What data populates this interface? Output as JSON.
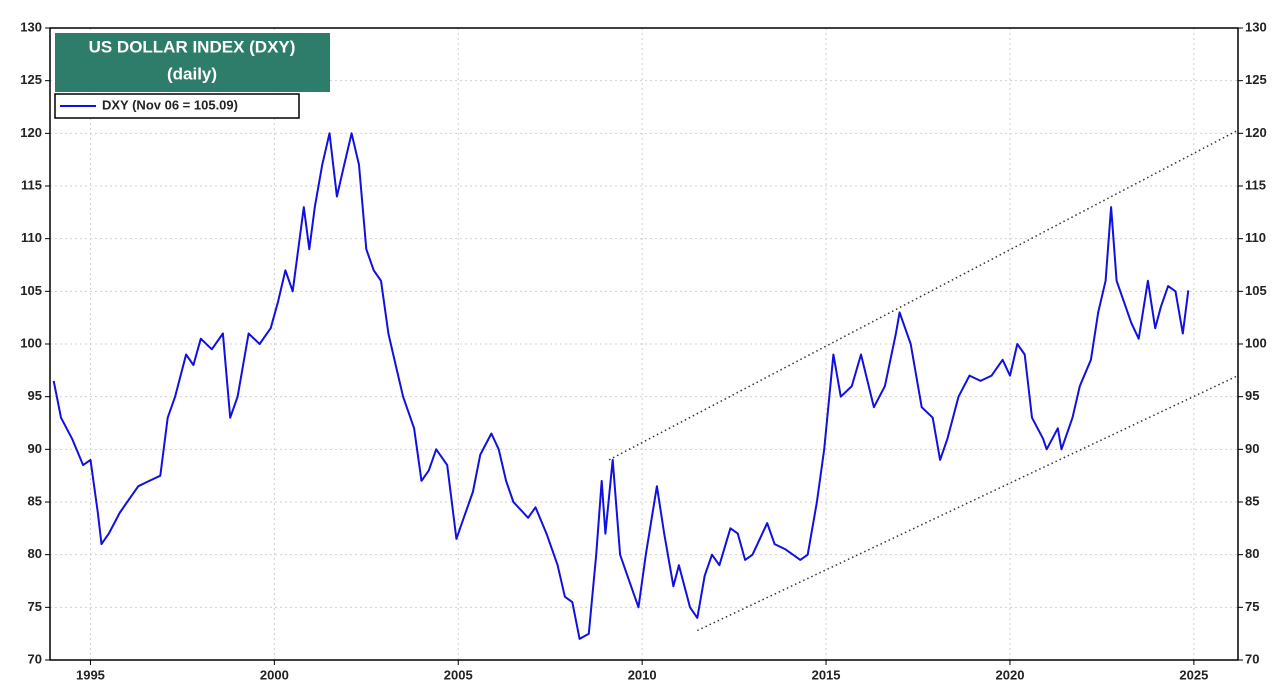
{
  "chart_data": {
    "type": "line",
    "title": "US DOLLAR INDEX (DXY)",
    "subtitle": "(daily)",
    "xlim": [
      1993.9,
      2026.2
    ],
    "xticks": [
      1995,
      2000,
      2005,
      2010,
      2015,
      2020,
      2025
    ],
    "ylim": [
      70,
      130
    ],
    "yticks": [
      70,
      75,
      80,
      85,
      90,
      95,
      100,
      105,
      110,
      115,
      120,
      125,
      130
    ],
    "grid": true,
    "legend": "upper left",
    "series": [
      {
        "name": "DXY (Nov 06 = 105.09)",
        "color": "#1010e0",
        "x": [
          1994.0,
          1994.2,
          1994.5,
          1994.8,
          1995.0,
          1995.2,
          1995.3,
          1995.5,
          1995.8,
          1996.0,
          1996.3,
          1996.6,
          1996.9,
          1997.1,
          1997.3,
          1997.6,
          1997.8,
          1998.0,
          1998.3,
          1998.6,
          1998.8,
          1999.0,
          1999.3,
          1999.6,
          1999.9,
          2000.1,
          2000.3,
          2000.5,
          2000.8,
          2000.95,
          2001.1,
          2001.3,
          2001.5,
          2001.7,
          2001.9,
          2002.1,
          2002.3,
          2002.5,
          2002.7,
          2002.9,
          2003.1,
          2003.3,
          2003.5,
          2003.8,
          2004.0,
          2004.2,
          2004.4,
          2004.7,
          2004.95,
          2005.1,
          2005.4,
          2005.6,
          2005.9,
          2006.1,
          2006.3,
          2006.5,
          2006.9,
          2007.1,
          2007.4,
          2007.7,
          2007.9,
          2008.1,
          2008.3,
          2008.55,
          2008.75,
          2008.9,
          2009.0,
          2009.2,
          2009.4,
          2009.7,
          2009.9,
          2010.1,
          2010.4,
          2010.6,
          2010.85,
          2011.0,
          2011.3,
          2011.5,
          2011.7,
          2011.9,
          2012.1,
          2012.4,
          2012.6,
          2012.8,
          2013.0,
          2013.4,
          2013.6,
          2013.9,
          2014.3,
          2014.5,
          2014.75,
          2014.95,
          2015.2,
          2015.4,
          2015.7,
          2015.95,
          2016.3,
          2016.6,
          2016.9,
          2017.0,
          2017.3,
          2017.6,
          2017.9,
          2018.1,
          2018.3,
          2018.6,
          2018.9,
          2019.2,
          2019.5,
          2019.8,
          2020.0,
          2020.2,
          2020.4,
          2020.6,
          2020.9,
          2021.0,
          2021.3,
          2021.4,
          2021.7,
          2021.9,
          2022.2,
          2022.4,
          2022.6,
          2022.75,
          2022.9,
          2023.1,
          2023.3,
          2023.5,
          2023.75,
          2023.95,
          2024.1,
          2024.3,
          2024.5,
          2024.7,
          2024.85
        ],
        "values": [
          96.5,
          93,
          91,
          88.5,
          89,
          84,
          81,
          82,
          84,
          85,
          86.5,
          87,
          87.5,
          93,
          95,
          99,
          98,
          100.5,
          99.5,
          101,
          93,
          95,
          101,
          100,
          101.5,
          104,
          107,
          105,
          113,
          109,
          113,
          117,
          120,
          114,
          117,
          120,
          117,
          109,
          107,
          106,
          101,
          98,
          95,
          92,
          87,
          88,
          90,
          88.5,
          81.5,
          83,
          86,
          89.5,
          91.5,
          90,
          87,
          85,
          83.5,
          84.5,
          82,
          79,
          76,
          75.5,
          72,
          72.5,
          80,
          87,
          82,
          89,
          80,
          77,
          75,
          80,
          86.5,
          82,
          77,
          79,
          75,
          74,
          78,
          80,
          79,
          82.5,
          82,
          79.5,
          80,
          83,
          81,
          80.5,
          79.5,
          80,
          85,
          90,
          99,
          95,
          96,
          99,
          94,
          96,
          101,
          103,
          100,
          94,
          93,
          89,
          91,
          95,
          97,
          96.5,
          97,
          98.5,
          97,
          100,
          99,
          93,
          91,
          90,
          92,
          90,
          93,
          96,
          98.5,
          103,
          106,
          113,
          106,
          104,
          102,
          100.5,
          106,
          101.5,
          103.5,
          105.5,
          105,
          101,
          105.09
        ]
      }
    ],
    "trendlines": [
      {
        "x": [
          2009.1,
          2026.2
        ],
        "y": [
          89,
          120.3
        ]
      },
      {
        "x": [
          2011.5,
          2026.2
        ],
        "y": [
          72.8,
          97
        ]
      }
    ]
  }
}
